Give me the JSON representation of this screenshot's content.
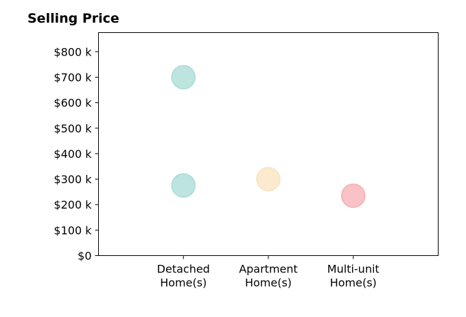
{
  "chart_data": {
    "type": "scatter",
    "title": "Selling Price",
    "xlabel": "",
    "ylabel": "",
    "categories": [
      {
        "line1": "Detached",
        "line2": "Home(s)"
      },
      {
        "line1": "Apartment",
        "line2": "Home(s)"
      },
      {
        "line1": "Multi-unit",
        "line2": "Home(s)"
      }
    ],
    "points": [
      {
        "category": 0,
        "y": 700000,
        "color": "#a8dbd6"
      },
      {
        "category": 0,
        "y": 275000,
        "color": "#a8dbd6"
      },
      {
        "category": 1,
        "y": 300000,
        "color": "#f9e3bd"
      },
      {
        "category": 2,
        "y": 235000,
        "color": "#f5aeb3"
      }
    ],
    "yticks": [
      {
        "value": 0,
        "label": "$0"
      },
      {
        "value": 100000,
        "label": "$100 k"
      },
      {
        "value": 200000,
        "label": "$200 k"
      },
      {
        "value": 300000,
        "label": "$300 k"
      },
      {
        "value": 400000,
        "label": "$400 k"
      },
      {
        "value": 500000,
        "label": "$500 k"
      },
      {
        "value": 600000,
        "label": "$600 k"
      },
      {
        "value": 700000,
        "label": "$700 k"
      },
      {
        "value": 800000,
        "label": "$800 k"
      }
    ],
    "ylim": [
      0,
      875000
    ],
    "xlim": [
      -1,
      3
    ],
    "grid": false
  }
}
